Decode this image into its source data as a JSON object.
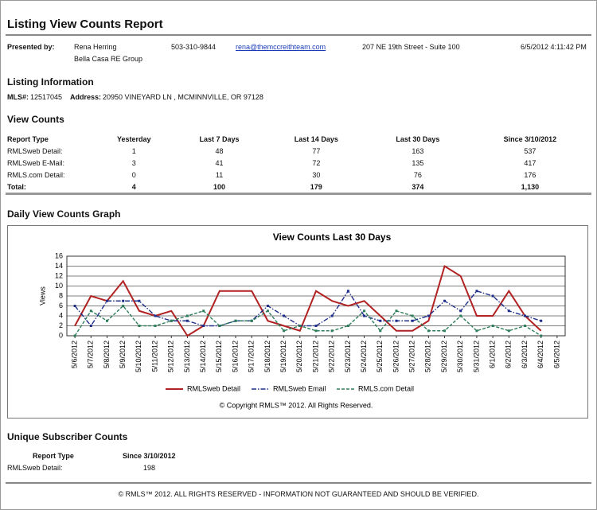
{
  "header": {
    "title": "Listing View Counts Report"
  },
  "presenter": {
    "label": "Presented by:",
    "name": "Rena Herring",
    "company": "Bella Casa RE Group",
    "phone": "503-310-9844",
    "email": "rena@themccreithteam.com",
    "address": "207 NE 19th Street - Suite 100",
    "date": "6/5/2012 4:11:42 PM"
  },
  "listing": {
    "title": "Listing Information",
    "mls_label": "MLS#:",
    "mls": "12517045",
    "address_label": "Address:",
    "address": "20950 VINEYARD LN , MCMINNVILLE, OR 97128"
  },
  "view_counts": {
    "title": "View Counts",
    "columns": [
      "Report Type",
      "Yesterday",
      "Last 7 Days",
      "Last 14 Days",
      "Last 30 Days",
      "Since 3/10/2012"
    ],
    "rows": [
      [
        "RMLSweb Detail:",
        "1",
        "48",
        "77",
        "163",
        "537"
      ],
      [
        "RMLSweb E-Mail:",
        "3",
        "41",
        "72",
        "135",
        "417"
      ],
      [
        "RMLS.com Detail:",
        "0",
        "11",
        "30",
        "76",
        "176"
      ]
    ],
    "total": [
      "Total:",
      "4",
      "100",
      "179",
      "374",
      "1,130"
    ]
  },
  "graph": {
    "title": "Daily View Counts Graph"
  },
  "chart_data": {
    "type": "line",
    "title": "View Counts Last 30 Days",
    "y_label": "Views",
    "categories": [
      "5/6/2012",
      "5/7/2012",
      "5/8/2012",
      "5/9/2012",
      "5/10/2012",
      "5/11/2012",
      "5/12/2012",
      "5/13/2012",
      "5/14/2012",
      "5/15/2012",
      "5/16/2012",
      "5/17/2012",
      "5/18/2012",
      "5/19/2012",
      "5/20/2012",
      "5/21/2012",
      "5/22/2012",
      "5/23/2012",
      "5/24/2012",
      "5/25/2012",
      "5/26/2012",
      "5/27/2012",
      "5/28/2012",
      "5/29/2012",
      "5/30/2012",
      "5/31/2012",
      "6/1/2012",
      "6/2/2012",
      "6/3/2012",
      "6/4/2012",
      "6/5/2012"
    ],
    "series": [
      {
        "name": "RMLSweb Detail",
        "color": "#b22222",
        "line_style": "solid",
        "values": [
          2,
          8,
          7,
          11,
          5,
          4,
          5,
          0,
          2,
          9,
          9,
          9,
          3,
          2,
          1,
          9,
          7,
          6,
          7,
          4,
          1,
          1,
          3,
          14,
          12,
          4,
          4,
          9,
          4,
          1,
          null
        ]
      },
      {
        "name": "RMLSweb Email",
        "color": "#1f2f8a",
        "line_style": "dashdot",
        "values": [
          6,
          2,
          7,
          7,
          7,
          4,
          3,
          3,
          2,
          2,
          3,
          3,
          6,
          4,
          2,
          2,
          4,
          9,
          4,
          3,
          3,
          3,
          4,
          7,
          5,
          9,
          8,
          5,
          4,
          3,
          null
        ]
      },
      {
        "name": "RMLS.com Detail",
        "color": "#2e7d5b",
        "line_style": "dashed",
        "values": [
          0,
          5,
          3,
          6,
          2,
          2,
          3,
          4,
          5,
          2,
          3,
          3,
          5,
          1,
          2,
          1,
          1,
          2,
          5,
          1,
          5,
          4,
          1,
          1,
          4,
          1,
          2,
          1,
          2,
          0,
          null
        ]
      }
    ],
    "ylim": [
      0,
      16
    ],
    "yticks": [
      0,
      2,
      4,
      6,
      8,
      10,
      12,
      14,
      16
    ],
    "grid": true,
    "legend": "bottom",
    "copyright": "© Copyright RMLS™ 2012.  All Rights Reserved."
  },
  "subscriber": {
    "title": "Unique Subscriber Counts",
    "columns": [
      "Report Type",
      "Since 3/10/2012"
    ],
    "rows": [
      [
        "RMLSweb Detail:",
        "198"
      ]
    ]
  },
  "footer": "© RMLS™ 2012. ALL RIGHTS RESERVED - INFORMATION NOT GUARANTEED AND SHOULD BE VERIFIED."
}
